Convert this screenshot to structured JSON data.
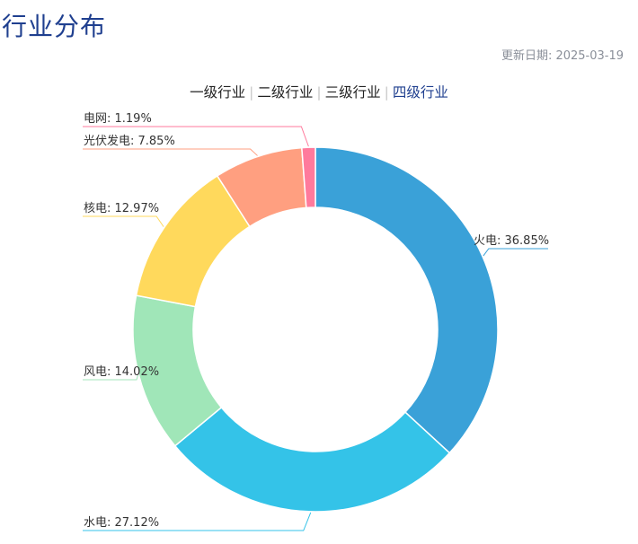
{
  "header": {
    "title": "行业分布",
    "update_date": "更新日期: 2025-03-19"
  },
  "tabs": [
    {
      "label": "一级行业",
      "active": false
    },
    {
      "label": "二级行业",
      "active": false
    },
    {
      "label": "三级行业",
      "active": false
    },
    {
      "label": "四级行业",
      "active": true
    }
  ],
  "chart_data": {
    "type": "pie",
    "donut": true,
    "slices": [
      {
        "name": "火电",
        "value": 36.85,
        "label": "火电: 36.85%",
        "color": "#3aa1d8"
      },
      {
        "name": "水电",
        "value": 27.12,
        "label": "水电: 27.12%",
        "color": "#34c3e8"
      },
      {
        "name": "风电",
        "value": 14.02,
        "label": "风电: 14.02%",
        "color": "#a0e6b8"
      },
      {
        "name": "核电",
        "value": 12.97,
        "label": "核电: 12.97%",
        "color": "#ffd95c"
      },
      {
        "name": "光伏发电",
        "value": 7.85,
        "label": "光伏发电: 7.85%",
        "color": "#ff9f80"
      },
      {
        "name": "电网",
        "value": 1.19,
        "label": "电网: 1.19%",
        "color": "#ff7a9c"
      }
    ]
  }
}
